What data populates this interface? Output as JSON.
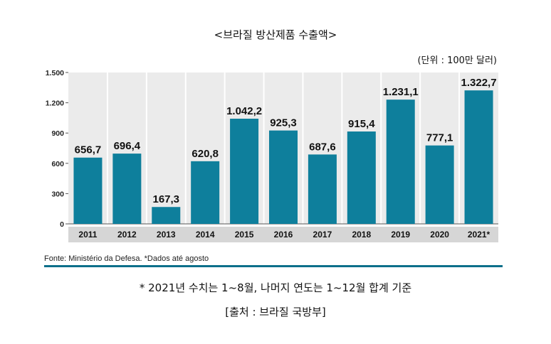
{
  "header": {
    "title": "<브라질 방산제품 수출액>",
    "unit": "(단위 : 100만 달러)"
  },
  "footer": {
    "source": "Fonte: Ministério da Defesa. *Dados até agosto",
    "note": "* 2021년 수치는 1~8월, 나머지 연도는 1~12월 합계 기준",
    "origin": "[출처 : 브라질 국방부]"
  },
  "colors": {
    "bar": "#0e7f9c",
    "plot_background": "#ebebeb",
    "axis_band": "#d6d6d6",
    "rule": "#0b6f8a"
  },
  "chart_data": {
    "type": "bar",
    "title": "<브라질 방산제품 수출액>",
    "xlabel": "",
    "ylabel": "",
    "categories": [
      "2011",
      "2012",
      "2013",
      "2014",
      "2015",
      "2016",
      "2017",
      "2018",
      "2019",
      "2020",
      "2021*"
    ],
    "values": [
      656.7,
      696.4,
      167.3,
      620.8,
      1042.2,
      925.3,
      687.6,
      915.4,
      1231.1,
      777.1,
      1322.7
    ],
    "value_labels": [
      "656,7",
      "696,4",
      "167,3",
      "620,8",
      "1.042,2",
      "925,3",
      "687,6",
      "915,4",
      "1.231,1",
      "777,1",
      "1.322,7"
    ],
    "yticks": [
      0,
      300,
      600,
      900,
      1200,
      1500
    ],
    "ytick_labels": [
      "0",
      "300",
      "600",
      "900",
      "1.200",
      "1.500"
    ],
    "ylim": [
      0,
      1500
    ],
    "grid": "vertical separators",
    "legend": "none"
  }
}
